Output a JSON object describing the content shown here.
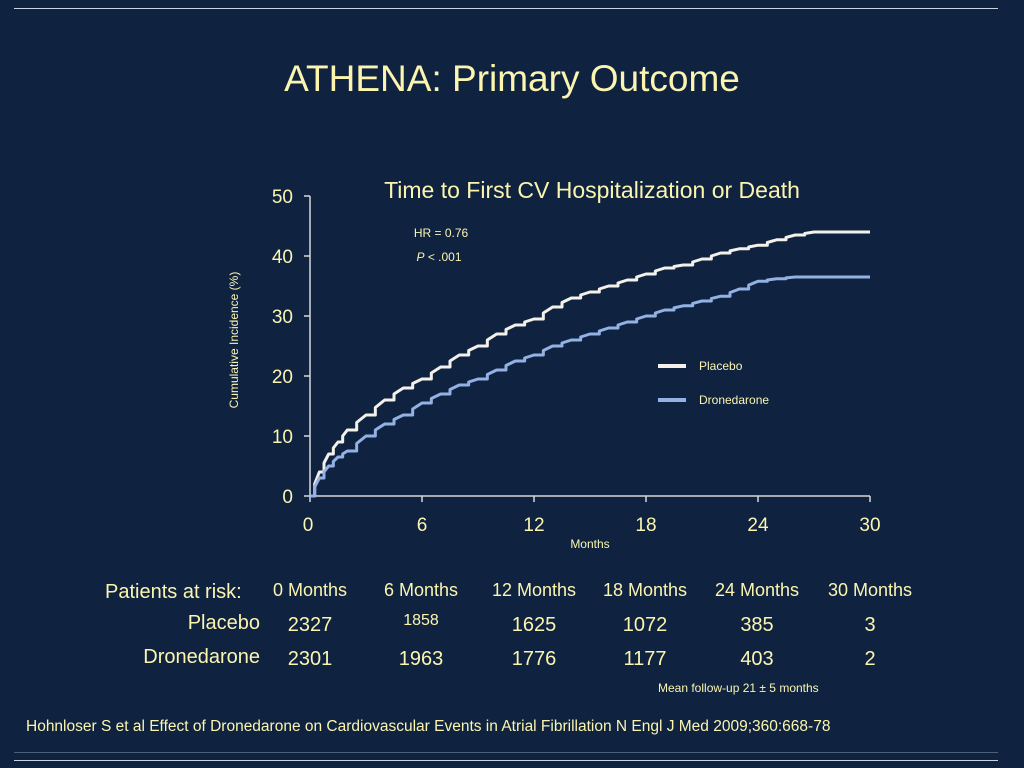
{
  "slide": {
    "title": "ATHENA: Primary Outcome",
    "followup_note": "Mean follow-up 21 ± 5 months",
    "citation": "Hohnloser S et al Effect of Dronedarone on Cardiovascular Events in Atrial Fibrillation N Engl J Med 2009;360:668-78"
  },
  "chart_data": {
    "type": "line",
    "title": "Time to First CV Hospitalization or Death",
    "xlabel": "Months",
    "ylabel": "Cumulative Incidence (%)",
    "xlim": [
      0,
      30
    ],
    "ylim": [
      0,
      50
    ],
    "x_ticks": [
      0,
      6,
      12,
      18,
      24,
      30
    ],
    "y_ticks": [
      0,
      10,
      20,
      30,
      40,
      50
    ],
    "grid": false,
    "legend_position": "right",
    "annotations": {
      "hr": "HR = 0.76",
      "p_italic": "P",
      "p_rest": " < .001"
    },
    "series": [
      {
        "name": "Placebo",
        "color": "#f4f1ea",
        "x": [
          0,
          0.5,
          1,
          1.5,
          2,
          3,
          4,
          5,
          6,
          7,
          8,
          9,
          10,
          11,
          12,
          13,
          14,
          15,
          16,
          17,
          18,
          19,
          20,
          21,
          22,
          23,
          24,
          25,
          26,
          27,
          28,
          29,
          30
        ],
        "y": [
          0,
          4,
          7,
          9,
          11,
          13.5,
          16,
          18,
          19.5,
          21.5,
          23.5,
          25,
          27,
          28.5,
          29.5,
          31.5,
          33,
          34,
          35,
          36,
          37,
          38,
          38.5,
          39.5,
          40.5,
          41.2,
          41.8,
          42.7,
          43.5,
          44,
          44,
          44,
          44
        ]
      },
      {
        "name": "Dronedarone",
        "color": "#93b1e3",
        "x": [
          0,
          0.5,
          1,
          1.5,
          2,
          3,
          4,
          5,
          6,
          7,
          8,
          9,
          10,
          11,
          12,
          13,
          14,
          15,
          16,
          17,
          18,
          19,
          20,
          21,
          22,
          23,
          24,
          25,
          26,
          27,
          28,
          29,
          30
        ],
        "y": [
          0,
          3,
          5,
          6.5,
          7.5,
          10,
          12,
          13.5,
          15.5,
          17,
          18.5,
          19.5,
          21,
          22.5,
          23.5,
          25,
          26,
          27,
          28,
          29,
          30,
          31,
          31.7,
          32.5,
          33.3,
          34.5,
          35.8,
          36.2,
          36.5,
          36.5,
          36.5,
          36.5,
          36.5
        ]
      }
    ]
  },
  "risk_table": {
    "label": "Patients at risk:",
    "headers": [
      "0 Months",
      "6 Months",
      "12 Months",
      "18 Months",
      "24 Months",
      "30 Months"
    ],
    "rows": [
      {
        "name": "Placebo",
        "values": [
          "2327",
          "1858",
          "1625",
          "1072",
          "385",
          "3"
        ]
      },
      {
        "name": "Dronedarone",
        "values": [
          "2301",
          "1963",
          "1776",
          "1177",
          "403",
          "2"
        ]
      }
    ]
  }
}
